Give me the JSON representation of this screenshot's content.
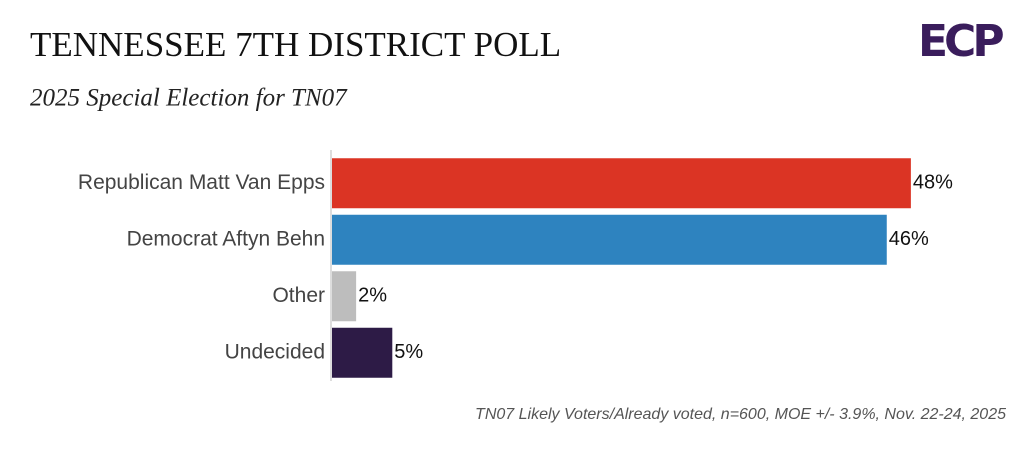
{
  "chart_data": {
    "type": "bar",
    "orientation": "horizontal",
    "title": "TENNESSEE 7TH DISTRICT POLL",
    "subtitle": "2025 Special Election for TN07",
    "logo": "ECP",
    "note": "TN07 Likely Voters/Already voted, n=600, MOE +/- 3.9%, Nov. 22-24, 2025",
    "categories": [
      "Republican Matt Van Epps",
      "Democrat Aftyn Behn",
      "Other",
      "Undecided"
    ],
    "values": [
      48,
      46,
      2,
      5
    ],
    "value_labels": [
      "48%",
      "46%",
      "2%",
      "5%"
    ],
    "colors": [
      "#db3424",
      "#2e83bf",
      "#bdbdbd",
      "#2d1b46"
    ]
  }
}
